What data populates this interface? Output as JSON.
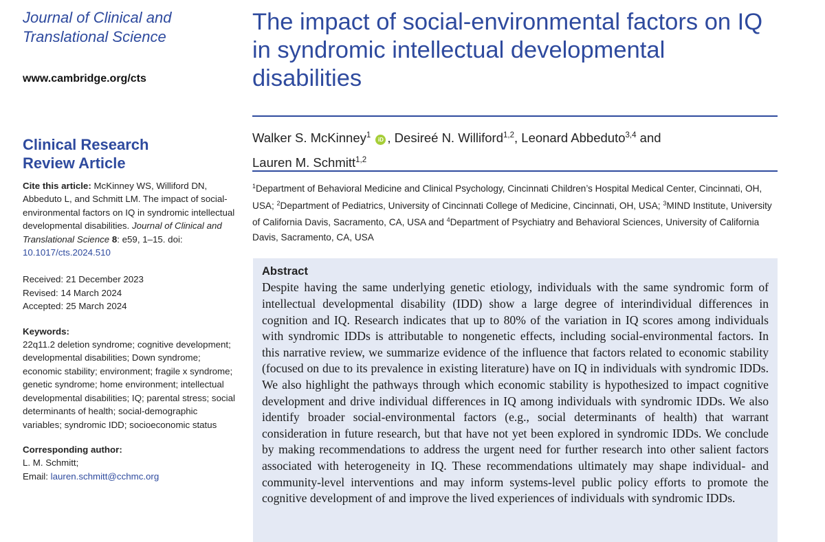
{
  "journal": {
    "name_line1": "Journal of Clinical and",
    "name_line2": "Translational Science",
    "url": "www.cambridge.org/cts"
  },
  "article_type": {
    "line1": "Clinical Research",
    "line2": "Review Article"
  },
  "cite": {
    "label": "Cite this article:",
    "text": "McKinney WS, Williford DN, Abbeduto L, and Schmitt LM. The impact of social-environmental factors on IQ in syndromic intellectual developmental disabilities.",
    "journal_italic": "Journal of Clinical and Translational Science",
    "volume": "8",
    "pages": ": e59, 1–15. doi:",
    "doi": "10.1017/cts.2024.510"
  },
  "dates": {
    "received": "Received: 21 December 2023",
    "revised": "Revised: 14 March 2024",
    "accepted": "Accepted: 25 March 2024"
  },
  "keywords": {
    "heading": "Keywords:",
    "text": "22q11.2 deletion syndrome; cognitive development; developmental disabilities; Down syndrome; economic stability; environment; fragile x syndrome; genetic syndrome; home environment; intellectual developmental disabilities; IQ; parental stress; social determinants of health; social-demographic variables; syndromic IDD; socioeconomic status"
  },
  "corresponding": {
    "heading": "Corresponding author:",
    "name": "L. M. Schmitt;",
    "email_label": "Email:",
    "email": "lauren.schmitt@cchmc.org"
  },
  "title": "The impact of social-environmental factors on IQ in syndromic intellectual developmental disabilities",
  "authors": {
    "a1": "Walker S. McKinney",
    "a1_sup": "1",
    "orcid_label": "iD",
    "a2": ", Desireé N. Williford",
    "a2_sup": "1,2",
    "a3": ", Leonard Abbeduto",
    "a3_sup": "3,4",
    "and": " and",
    "a4": "Lauren M. Schmitt",
    "a4_sup": "1,2"
  },
  "affiliations": {
    "s1": "1",
    "t1": "Department of Behavioral Medicine and Clinical Psychology, Cincinnati Children’s Hospital Medical Center, Cincinnati, OH, USA; ",
    "s2": "2",
    "t2": "Department of Pediatrics, University of Cincinnati College of Medicine, Cincinnati, OH, USA; ",
    "s3": "3",
    "t3": "MIND Institute, University of California Davis, Sacramento, CA, USA and ",
    "s4": "4",
    "t4": "Department of Psychiatry and Behavioral Sciences, University of California Davis, Sacramento, CA, USA"
  },
  "abstract": {
    "heading": "Abstract",
    "text": "Despite having the same underlying genetic etiology, individuals with the same syndromic form of intellectual developmental disability (IDD) show a large degree of interindividual differences in cognition and IQ. Research indicates that up to 80% of the variation in IQ scores among individuals with syndromic IDDs is attributable to nongenetic effects, including social-environmental factors. In this narrative review, we summarize evidence of the influence that factors related to economic stability (focused on due to its prevalence in existing literature) have on IQ in individuals with syndromic IDDs. We also highlight the pathways through which economic stability is hypothesized to impact cognitive development and drive individual differences in IQ among individuals with syndromic IDDs. We also identify broader social-environmental factors (e.g., social determinants of health) that warrant consideration in future research, but that have not yet been explored in syndromic IDDs. We conclude by making recommendations to address the urgent need for further research into other salient factors associated with heterogeneity in IQ. These recommendations ultimately may shape individual- and community-level interventions and may inform systems-level public policy efforts to promote the cognitive development of and improve the lived experiences of individuals with syndromic IDDs."
  },
  "colors": {
    "accent": "#2e4a9e",
    "abstract_bg": "#e4e9f4",
    "orcid": "#a6ce39"
  }
}
